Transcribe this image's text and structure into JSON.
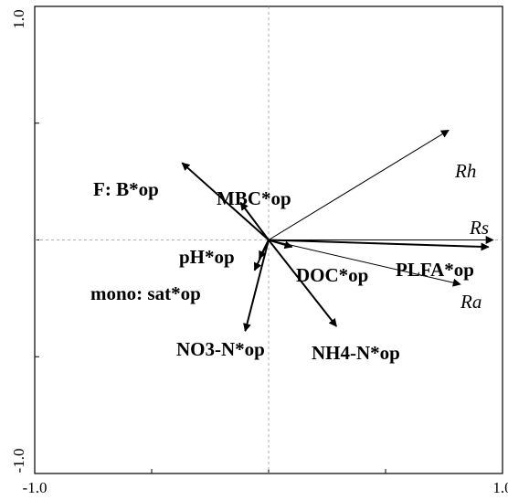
{
  "chart_data": {
    "type": "biplot",
    "title": "",
    "xlabel": "",
    "ylabel": "",
    "xlim": [
      -1.0,
      1.0
    ],
    "ylim": [
      -1.0,
      1.0
    ],
    "x_tick_labels": [
      "-1.0",
      "1.0"
    ],
    "y_tick_labels": [
      "-1.0",
      "1.0"
    ],
    "grid": false,
    "origin_lines": "dashed",
    "response_variables": [
      {
        "label": "Rh",
        "x": 0.77,
        "y": 0.47
      },
      {
        "label": "Rs",
        "x": 0.96,
        "y": 0.0
      },
      {
        "label": "Ra",
        "x": 0.82,
        "y": -0.19
      }
    ],
    "explanatory_variables": [
      {
        "label": "F: B*op",
        "x": -0.37,
        "y": 0.33
      },
      {
        "label": "MBC*op",
        "x": -0.12,
        "y": 0.16
      },
      {
        "label": "pH*op",
        "x": -0.04,
        "y": -0.08
      },
      {
        "label": "mono: sat*op",
        "x": -0.06,
        "y": -0.13
      },
      {
        "label": "NO3-N*op",
        "x": -0.1,
        "y": -0.39
      },
      {
        "label": "NH4-N*op",
        "x": 0.29,
        "y": -0.37
      },
      {
        "label": "DOC*op",
        "x": 0.1,
        "y": -0.03
      },
      {
        "label": "PLFA*op",
        "x": 0.94,
        "y": -0.03
      }
    ]
  }
}
